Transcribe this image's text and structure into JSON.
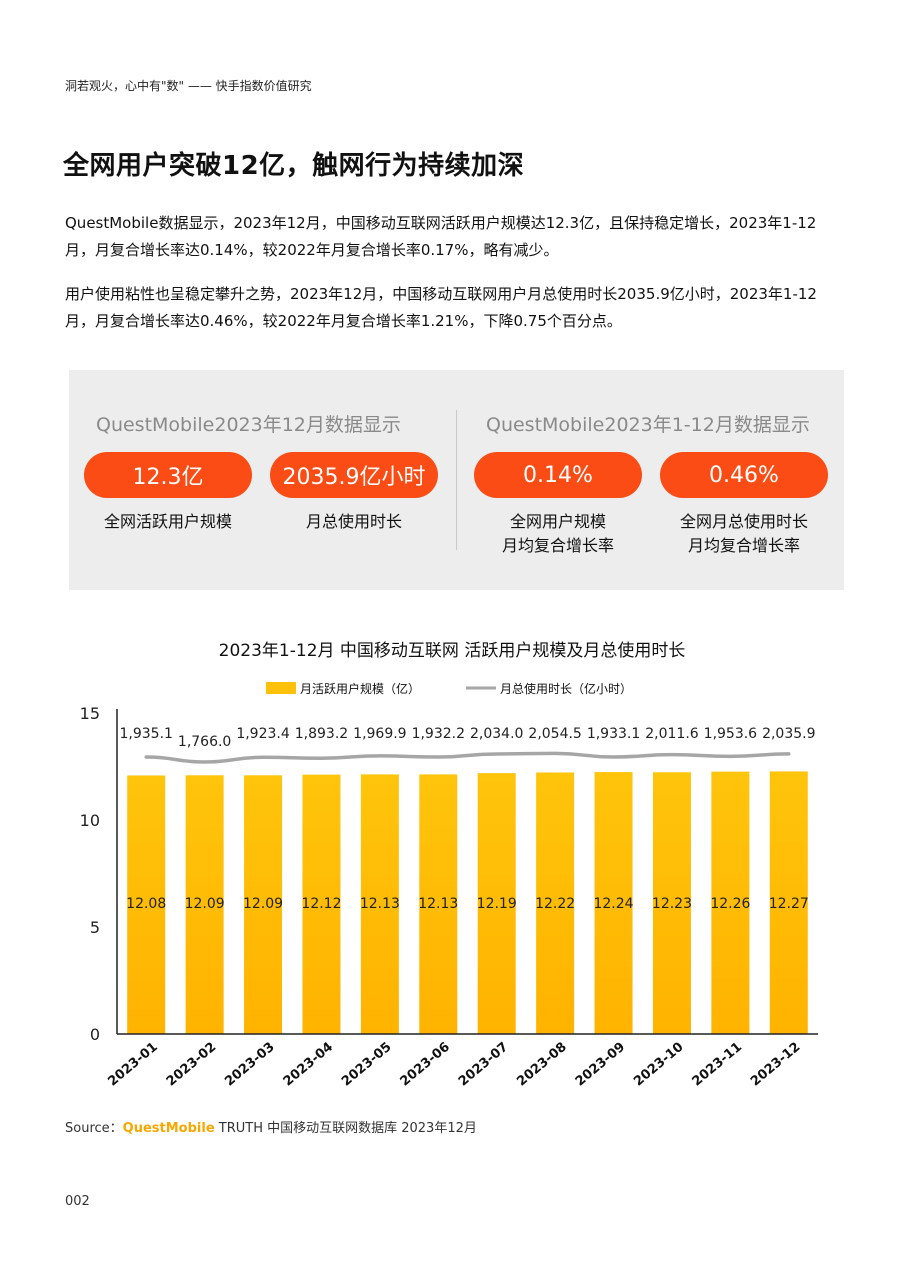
{
  "header": {
    "running_title": "洞若观火，心中有\"数\" —— 快手指数价值研究"
  },
  "title": "全网用户突破12亿，触网行为持续加深",
  "paragraphs": [
    "QuestMobile数据显示，2023年12月，中国移动互联网活跃用户规模达12.3亿，且保持稳定增长，2023年1-12月，月复合增长率达0.14%，较2022年月复合增长率0.17%，略有减少。",
    "用户使用粘性也呈稳定攀升之势，2023年12月，中国移动互联网用户月总使用时长2035.9亿小时，2023年1-12月，月复合增长率达0.46%，较2022年月复合增长率1.21%，下降0.75个百分点。"
  ],
  "panel": {
    "left_heading": "QuestMobile2023年12月数据显示",
    "right_heading": "QuestMobile2023年1-12月数据显示",
    "stats": [
      {
        "value": "12.3亿",
        "label": "全网活跃用户规模"
      },
      {
        "value": "2035.9亿小时",
        "label": "月总使用时长"
      },
      {
        "value": "0.14%",
        "label_line1": "全网用户规模",
        "label_line2": "月均复合增长率"
      },
      {
        "value": "0.46%",
        "label_line1": "全网月总使用时长",
        "label_line2": "月均复合增长率"
      }
    ]
  },
  "chart_data": {
    "type": "bar",
    "title": "2023年1-12月 中国移动互联网 活跃用户规模及月总使用时长",
    "categories": [
      "2023-01",
      "2023-02",
      "2023-03",
      "2023-04",
      "2023-05",
      "2023-06",
      "2023-07",
      "2023-08",
      "2023-09",
      "2023-10",
      "2023-11",
      "2023-12"
    ],
    "series": [
      {
        "name": "月活跃用户规模（亿）",
        "type": "bar",
        "color": "#ffc107",
        "values": [
          12.08,
          12.09,
          12.09,
          12.12,
          12.13,
          12.13,
          12.19,
          12.22,
          12.24,
          12.23,
          12.26,
          12.27
        ],
        "labels": [
          "12.08",
          "12.09",
          "12.09",
          "12.12",
          "12.13",
          "12.13",
          "12.19",
          "12.22",
          "12.24",
          "12.23",
          "12.26",
          "12.27"
        ]
      },
      {
        "name": "月总使用时长（亿小时）",
        "type": "line",
        "color": "#a6a6a6",
        "values": [
          1935.1,
          1766.0,
          1923.4,
          1893.2,
          1969.9,
          1932.2,
          2034.0,
          2054.5,
          1933.1,
          2011.6,
          1953.6,
          2035.9
        ],
        "labels": [
          "1,935.1",
          "1,766.0",
          "1,923.4",
          "1,893.2",
          "1,969.9",
          "1,932.2",
          "2,034.0",
          "2,054.5",
          "1,933.1",
          "2,011.6",
          "1,953.6",
          "2,035.9"
        ]
      }
    ],
    "ylim": [
      0,
      15
    ],
    "yticks": [
      "0",
      "5",
      "10",
      "15"
    ],
    "legend": "top-center",
    "grid": false
  },
  "source": {
    "prefix": "Source：",
    "brand": "QuestMobile",
    "rest": " TRUTH 中国移动互联网数据库 2023年12月"
  },
  "page_number": "002"
}
